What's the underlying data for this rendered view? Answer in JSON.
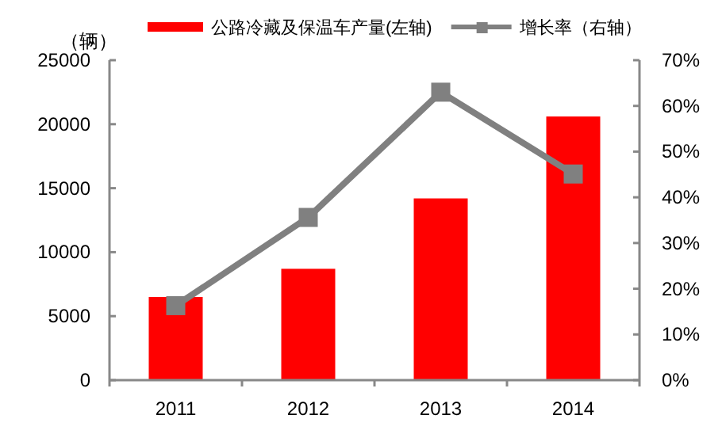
{
  "chart_data": {
    "type": "bar",
    "ylabel": "（辆）",
    "categories": [
      "2011",
      "2012",
      "2013",
      "2014"
    ],
    "series": [
      {
        "name": "公路冷藏及保温车产量(左轴)",
        "color": "#ff0000",
        "values": [
          6500,
          8700,
          14200,
          20600
        ]
      },
      {
        "name": "增长率（右轴）",
        "type": "line",
        "axis": "y2",
        "color": "#808080",
        "values": [
          16.3,
          35.6,
          63,
          45.1
        ]
      }
    ],
    "ylim": [
      0,
      25000
    ],
    "yticks": [
      0,
      5000,
      10000,
      15000,
      20000,
      25000
    ],
    "y2lim": [
      0,
      70
    ],
    "y2ticks": [
      {
        "value": 0,
        "label": "0%"
      },
      {
        "value": 10,
        "label": "10%"
      },
      {
        "value": 20,
        "label": "20%"
      },
      {
        "value": 30,
        "label": "30%"
      },
      {
        "value": 40,
        "label": "40%"
      },
      {
        "value": 50,
        "label": "50%"
      },
      {
        "value": 60,
        "label": "60%"
      },
      {
        "value": 70,
        "label": "70%"
      }
    ],
    "legend": "top",
    "marker": "square",
    "grid": false
  }
}
